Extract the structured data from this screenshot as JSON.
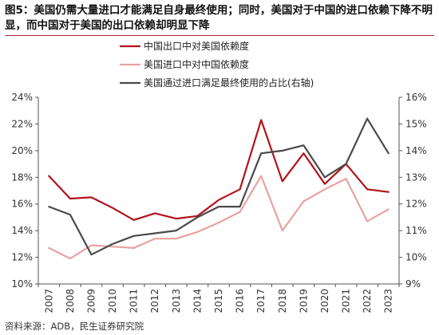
{
  "title": "图5：美国仍需大量进口才能满足自身最终使用；同时，美国对于中国的进口依赖下降不明显，而中国对于美国的出口依赖却明显下降",
  "source": "资料来源：ADB，民生证券研究院",
  "colors": {
    "china_export": "#b3121a",
    "us_import": "#e8a2a0",
    "us_ratio": "#4a4a4a",
    "title_rule": "#b3262b"
  },
  "chart_data": {
    "type": "line",
    "x": [
      "2007",
      "2008",
      "2009",
      "2010",
      "2011",
      "2012",
      "2013",
      "2014",
      "2015",
      "2016",
      "2017",
      "2018",
      "2019",
      "2020",
      "2021",
      "2022",
      "2023"
    ],
    "y_left": {
      "min": 10,
      "max": 24,
      "step": 2,
      "unit": "%",
      "ticks": [
        "10%",
        "12%",
        "14%",
        "16%",
        "18%",
        "20%",
        "22%",
        "24%"
      ]
    },
    "y_right": {
      "min": 9,
      "max": 16,
      "step": 1,
      "unit": "%",
      "ticks": [
        "9%",
        "10%",
        "11%",
        "12%",
        "13%",
        "14%",
        "15%",
        "16%"
      ]
    },
    "legend_position": "top-left",
    "grid": false,
    "series": [
      {
        "name": "中国出口中对美国依赖度",
        "axis": "left",
        "color": "#b3121a",
        "values": [
          18.1,
          16.4,
          16.5,
          15.7,
          14.8,
          15.3,
          14.9,
          15.1,
          16.3,
          17.1,
          22.3,
          17.7,
          19.8,
          17.5,
          19.0,
          17.1,
          16.9
        ]
      },
      {
        "name": "美国进口中对中国依赖度",
        "axis": "left",
        "color": "#e8a2a0",
        "values": [
          12.7,
          11.9,
          12.9,
          12.8,
          12.7,
          13.4,
          13.4,
          13.9,
          14.6,
          15.4,
          18.1,
          14.0,
          16.2,
          17.1,
          17.9,
          14.7,
          15.6
        ]
      },
      {
        "name": "美国通过进口满足最终使用的占比(右轴)",
        "axis": "right",
        "color": "#4a4a4a",
        "values": [
          11.9,
          11.6,
          10.1,
          10.5,
          10.8,
          10.9,
          11.0,
          11.5,
          11.9,
          11.9,
          13.9,
          14.0,
          14.2,
          13.0,
          13.5,
          15.2,
          13.9
        ]
      }
    ]
  }
}
